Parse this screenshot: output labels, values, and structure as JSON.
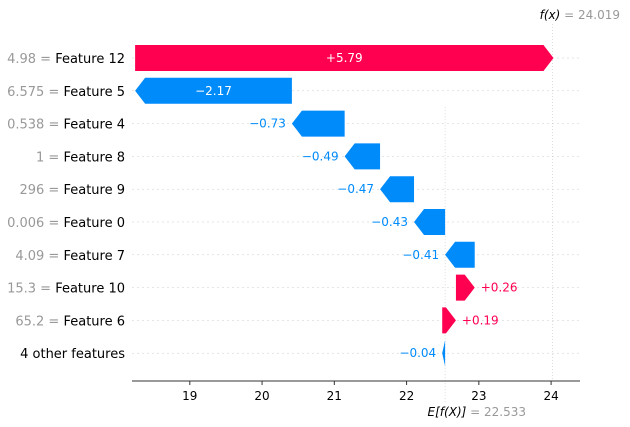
{
  "chart_data": {
    "type": "waterfall",
    "fx_label": "f(x)",
    "fx_value": "24.019",
    "efx_label": "E[f(X)]",
    "efx_value": "22.533",
    "base_value": 22.533,
    "final_value": 24.019,
    "xlim": [
      18.2,
      24.4
    ],
    "x_ticks": [
      19,
      20,
      21,
      22,
      23,
      24
    ],
    "x_tick_labels": [
      "19",
      "20",
      "21",
      "22",
      "23",
      "24"
    ],
    "grid": false,
    "positive_color": "#ff0051",
    "negative_color": "#008bfb",
    "rows": [
      {
        "feature_value": "4.98",
        "feature_name": "Feature 12",
        "contribution": 5.79,
        "label": "+5.79"
      },
      {
        "feature_value": "6.575",
        "feature_name": "Feature 5",
        "contribution": -2.17,
        "label": "−2.17"
      },
      {
        "feature_value": "0.538",
        "feature_name": "Feature 4",
        "contribution": -0.73,
        "label": "−0.73"
      },
      {
        "feature_value": "1",
        "feature_name": "Feature 8",
        "contribution": -0.49,
        "label": "−0.49"
      },
      {
        "feature_value": "296",
        "feature_name": "Feature 9",
        "contribution": -0.47,
        "label": "−0.47"
      },
      {
        "feature_value": "0.006",
        "feature_name": "Feature 0",
        "contribution": -0.43,
        "label": "−0.43"
      },
      {
        "feature_value": "4.09",
        "feature_name": "Feature 7",
        "contribution": -0.41,
        "label": "−0.41"
      },
      {
        "feature_value": "15.3",
        "feature_name": "Feature 10",
        "contribution": 0.26,
        "label": "+0.26"
      },
      {
        "feature_value": "65.2",
        "feature_name": "Feature 6",
        "contribution": 0.19,
        "label": "+0.19"
      },
      {
        "feature_value": "",
        "feature_name": "4 other features",
        "contribution": -0.04,
        "label": "−0.04"
      }
    ]
  }
}
